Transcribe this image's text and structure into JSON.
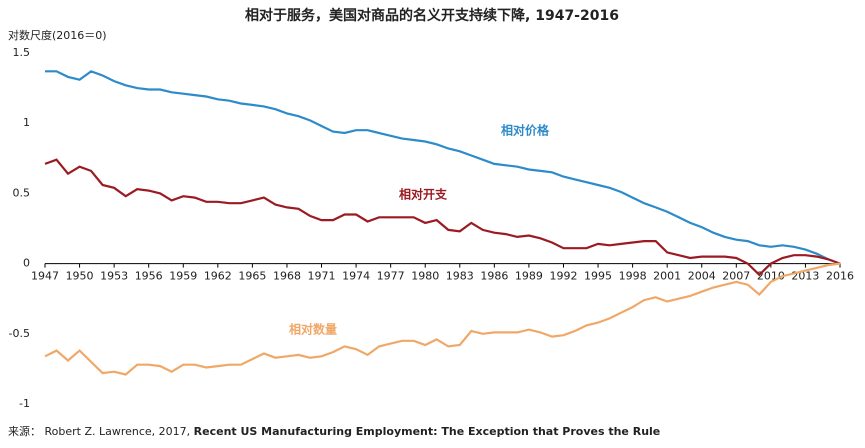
{
  "chart_data": {
    "type": "line",
    "title": "相对于服务，美国对商品的名义开支持续下降, 1947-2016",
    "y_label": "对数尺度(2016＝0)",
    "source": [
      "来源： Robert Z. Lawrence, 2017, ",
      "Recent US Manufacturing Employment: The Exception that Proves the Rule"
    ],
    "x": [
      1947,
      1948,
      1949,
      1950,
      1951,
      1952,
      1953,
      1954,
      1955,
      1956,
      1957,
      1958,
      1959,
      1960,
      1961,
      1962,
      1963,
      1964,
      1965,
      1966,
      1967,
      1968,
      1969,
      1970,
      1971,
      1972,
      1973,
      1974,
      1975,
      1976,
      1977,
      1978,
      1979,
      1980,
      1981,
      1982,
      1983,
      1984,
      1985,
      1986,
      1987,
      1988,
      1989,
      1990,
      1991,
      1992,
      1993,
      1994,
      1995,
      1996,
      1997,
      1998,
      1999,
      2000,
      2001,
      2002,
      2003,
      2004,
      2005,
      2006,
      2007,
      2008,
      2009,
      2010,
      2011,
      2012,
      2013,
      2014,
      2015,
      2016
    ],
    "series": [
      {
        "name": "相对价格",
        "color": "#2e8bc9",
        "values": [
          1.37,
          1.37,
          1.33,
          1.31,
          1.37,
          1.34,
          1.3,
          1.27,
          1.25,
          1.24,
          1.24,
          1.22,
          1.21,
          1.2,
          1.19,
          1.17,
          1.16,
          1.14,
          1.13,
          1.12,
          1.1,
          1.07,
          1.05,
          1.02,
          0.98,
          0.94,
          0.93,
          0.95,
          0.95,
          0.93,
          0.91,
          0.89,
          0.88,
          0.87,
          0.85,
          0.82,
          0.8,
          0.77,
          0.74,
          0.71,
          0.7,
          0.69,
          0.67,
          0.66,
          0.65,
          0.62,
          0.6,
          0.58,
          0.56,
          0.54,
          0.51,
          0.47,
          0.43,
          0.4,
          0.37,
          0.33,
          0.29,
          0.26,
          0.22,
          0.19,
          0.17,
          0.16,
          0.13,
          0.12,
          0.13,
          0.12,
          0.1,
          0.07,
          0.03,
          0
        ]
      },
      {
        "name": "相对开支",
        "color": "#9b1b22",
        "values": [
          0.71,
          0.74,
          0.64,
          0.69,
          0.66,
          0.56,
          0.54,
          0.48,
          0.53,
          0.52,
          0.5,
          0.45,
          0.48,
          0.47,
          0.44,
          0.44,
          0.43,
          0.43,
          0.45,
          0.47,
          0.42,
          0.4,
          0.39,
          0.34,
          0.31,
          0.31,
          0.35,
          0.35,
          0.3,
          0.33,
          0.33,
          0.33,
          0.33,
          0.29,
          0.31,
          0.24,
          0.23,
          0.29,
          0.24,
          0.22,
          0.21,
          0.19,
          0.2,
          0.18,
          0.15,
          0.11,
          0.11,
          0.11,
          0.14,
          0.13,
          0.14,
          0.15,
          0.16,
          0.16,
          0.08,
          0.06,
          0.04,
          0.05,
          0.05,
          0.05,
          0.04,
          0.0,
          -0.08,
          0.0,
          0.04,
          0.06,
          0.06,
          0.05,
          0.03,
          0
        ]
      },
      {
        "name": "相对数量",
        "color": "#f0a868",
        "values": [
          -0.66,
          -0.62,
          -0.69,
          -0.62,
          -0.7,
          -0.78,
          -0.77,
          -0.79,
          -0.72,
          -0.72,
          -0.73,
          -0.77,
          -0.72,
          -0.72,
          -0.74,
          -0.73,
          -0.72,
          -0.72,
          -0.68,
          -0.64,
          -0.67,
          -0.66,
          -0.65,
          -0.67,
          -0.66,
          -0.63,
          -0.59,
          -0.61,
          -0.65,
          -0.59,
          -0.57,
          -0.55,
          -0.55,
          -0.58,
          -0.54,
          -0.59,
          -0.58,
          -0.48,
          -0.5,
          -0.49,
          -0.49,
          -0.49,
          -0.47,
          -0.49,
          -0.52,
          -0.51,
          -0.48,
          -0.44,
          -0.42,
          -0.39,
          -0.35,
          -0.31,
          -0.26,
          -0.24,
          -0.27,
          -0.25,
          -0.23,
          -0.2,
          -0.17,
          -0.15,
          -0.13,
          -0.15,
          -0.22,
          -0.13,
          -0.09,
          -0.07,
          -0.05,
          -0.03,
          -0.01,
          0
        ]
      }
    ],
    "xlim": [
      1947,
      2016
    ],
    "xticks": [
      1947,
      1950,
      1953,
      1956,
      1959,
      1962,
      1965,
      1968,
      1971,
      1974,
      1977,
      1980,
      1983,
      1986,
      1989,
      1992,
      1995,
      1998,
      2001,
      2004,
      2007,
      2010,
      2013,
      2016
    ],
    "ylim": [
      -1,
      1.5
    ],
    "yticks": [
      -1,
      -0.5,
      0,
      0.5,
      1,
      1.5
    ],
    "grid": false
  }
}
